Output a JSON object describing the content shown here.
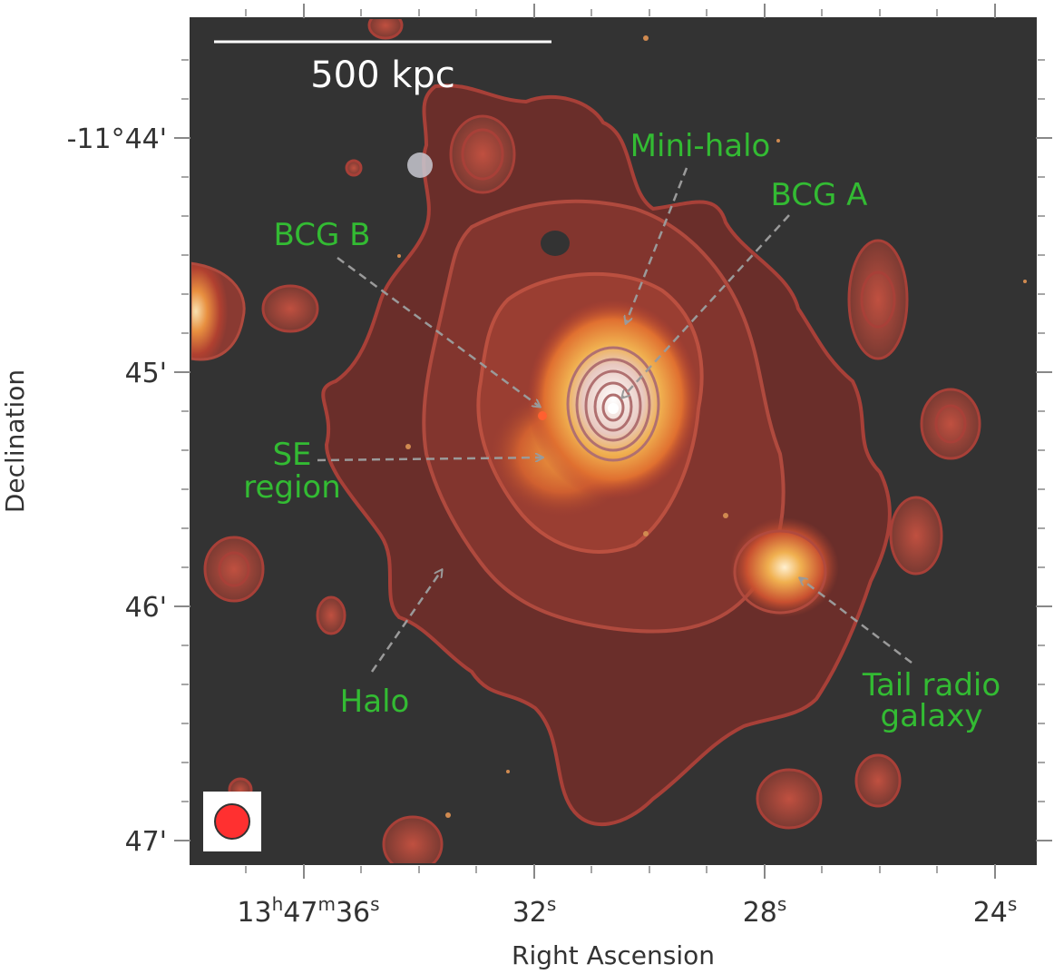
{
  "image": {
    "scale_bar_label": "500 kpc",
    "label_color": "#33bb33",
    "arrow_color": "#9a9a9a",
    "beam_color": "#ff3030",
    "annotations": {
      "mini_halo": "Mini-halo",
      "bcg_a": "BCG A",
      "bcg_b": "BCG B",
      "se_region_line1": "SE",
      "se_region_line2": "region",
      "halo": "Halo",
      "tail_line1": "Tail radio",
      "tail_line2": "galaxy"
    }
  },
  "axes": {
    "xlabel": "Right Ascension",
    "ylabel": "Declination",
    "x_ticks": [
      {
        "h": "13",
        "m": "47",
        "s": "36"
      },
      {
        "s": "32"
      },
      {
        "s": "28"
      },
      {
        "s": "24"
      }
    ],
    "x_tick_units": {
      "h": "h",
      "m": "m",
      "s": "s"
    },
    "y_ticks": [
      "-11°44'",
      "45'",
      "46'",
      "47'"
    ]
  }
}
